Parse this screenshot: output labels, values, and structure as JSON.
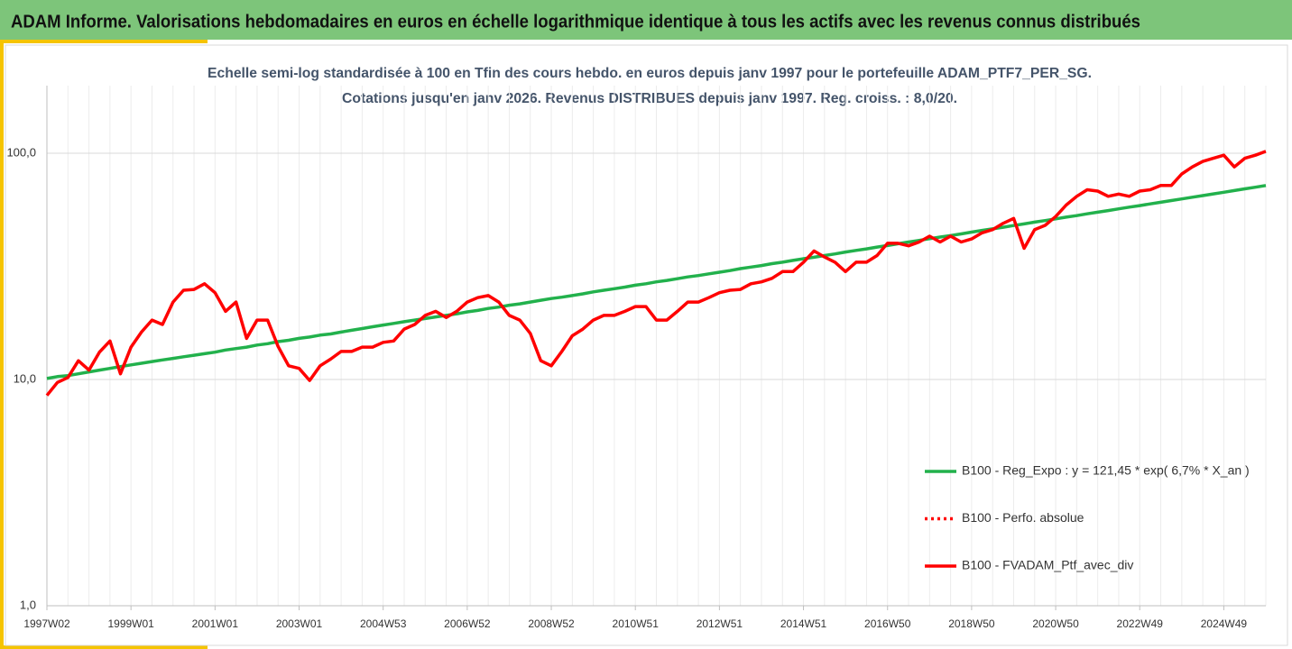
{
  "header": {
    "title": "ADAM Informe. Valorisations hebdomadaires en euros en échelle logarithmique identique à tous les actifs avec les revenus connus distribués"
  },
  "chart_data": {
    "type": "line",
    "title": "Echelle semi-log standardisée  à 100 en Tfin des cours hebdo.  en euros depuis janv 1997 pour le portefeuille ADAM_PTF7_PER_SG.",
    "subtitle": "Cotations jusqu'en janv 2026. Revenus DISTRIBUES depuis janv 1997. Reg. croiss. : 8,0/20.",
    "categories": [
      "1997W02",
      null,
      null,
      null,
      null,
      null,
      null,
      null,
      "1999W01",
      null,
      null,
      null,
      null,
      null,
      null,
      null,
      "2001W01",
      null,
      null,
      null,
      null,
      null,
      null,
      null,
      "2003W01",
      null,
      null,
      null,
      null,
      null,
      null,
      null,
      "2004W53",
      null,
      null,
      null,
      null,
      null,
      null,
      null,
      "2006W52",
      null,
      null,
      null,
      null,
      null,
      null,
      null,
      "2008W52",
      null,
      null,
      null,
      null,
      null,
      null,
      null,
      "2010W51",
      null,
      null,
      null,
      null,
      null,
      null,
      null,
      "2012W51",
      null,
      null,
      null,
      null,
      null,
      null,
      null,
      "2014W51",
      null,
      null,
      null,
      null,
      null,
      null,
      null,
      "2016W50",
      null,
      null,
      null,
      null,
      null,
      null,
      null,
      "2018W50",
      null,
      null,
      null,
      null,
      null,
      null,
      null,
      "2020W50",
      null,
      null,
      null,
      null,
      null,
      null,
      null,
      "2022W49",
      null,
      null,
      null,
      null,
      null,
      null,
      null,
      "2024W49",
      null,
      null,
      null,
      null
    ],
    "series": [
      {
        "name": "B100 - Reg_Expo : y = 121,45 * exp( 6,7% *  X_an )",
        "color": "#22b14c",
        "style": "solid",
        "values": [
          10.1,
          10.3,
          10.4,
          10.6,
          10.8,
          11.0,
          11.2,
          11.4,
          11.6,
          11.8,
          12.0,
          12.2,
          12.4,
          12.6,
          12.8,
          13.0,
          13.2,
          13.5,
          13.7,
          13.9,
          14.2,
          14.4,
          14.7,
          14.9,
          15.2,
          15.4,
          15.7,
          15.9,
          16.2,
          16.5,
          16.8,
          17.1,
          17.4,
          17.7,
          18.0,
          18.3,
          18.6,
          18.9,
          19.2,
          19.5,
          19.9,
          20.2,
          20.6,
          20.9,
          21.3,
          21.6,
          22.0,
          22.4,
          22.8,
          23.1,
          23.5,
          23.9,
          24.4,
          24.8,
          25.2,
          25.6,
          26.1,
          26.5,
          27.0,
          27.4,
          27.9,
          28.4,
          28.8,
          29.3,
          29.8,
          30.3,
          30.9,
          31.4,
          31.9,
          32.5,
          33.0,
          33.6,
          34.2,
          34.7,
          35.3,
          35.9,
          36.6,
          37.2,
          37.8,
          38.5,
          39.1,
          39.8,
          40.5,
          41.2,
          41.9,
          42.6,
          43.3,
          44.0,
          44.8,
          45.6,
          46.3,
          47.1,
          47.9,
          48.7,
          49.6,
          50.4,
          51.3,
          52.2,
          53.0,
          54.0,
          54.9,
          55.8,
          56.8,
          57.8,
          58.7,
          59.7,
          60.7,
          61.8,
          62.8,
          63.9,
          65.0,
          66.1,
          67.2,
          68.4,
          69.6,
          70.8,
          72.0
        ]
      },
      {
        "name": "B100 - Perfo. absolue",
        "color": "#ff0000",
        "style": "dotted"
      },
      {
        "name": "B100 - FVADAM_Ptf_avec_div",
        "color": "#ff0000",
        "style": "solid",
        "values": [
          8.5,
          9.7,
          10.2,
          12.1,
          11,
          13.2,
          14.8,
          10.6,
          13.9,
          16.2,
          18.3,
          17.5,
          22,
          24.8,
          25,
          26.5,
          24.2,
          20,
          22,
          15.2,
          18.3,
          18.3,
          14,
          11.5,
          11.2,
          9.9,
          11.5,
          12.3,
          13.3,
          13.3,
          13.9,
          13.9,
          14.6,
          14.8,
          16.7,
          17.5,
          19.2,
          20,
          18.8,
          20,
          22,
          23,
          23.5,
          22,
          19.2,
          18.3,
          16,
          12.1,
          11.5,
          13.3,
          15.6,
          16.7,
          18.3,
          19.2,
          19.2,
          20,
          21,
          21,
          18.3,
          18.3,
          20,
          22,
          22,
          23,
          24.2,
          24.8,
          25,
          26.5,
          27,
          28,
          30,
          30,
          33,
          37,
          34.8,
          33,
          30,
          33,
          33,
          35.3,
          40,
          40,
          39,
          40.5,
          43,
          40.5,
          43,
          40.5,
          41.8,
          44.5,
          46,
          49,
          51.5,
          38,
          46,
          48,
          52.5,
          59,
          64.5,
          69,
          68,
          64.5,
          66,
          64.5,
          68,
          69,
          72,
          72,
          81,
          87,
          92,
          95,
          98,
          87,
          95,
          98,
          102
        ]
      }
    ],
    "ylim": [
      1,
      199
    ],
    "yticks": [
      {
        "value": 1,
        "label": "1,0"
      },
      {
        "value": 10,
        "label": "10,0"
      },
      {
        "value": 100,
        "label": "100,0"
      }
    ],
    "log_scale": true,
    "grid": true,
    "legend": "right"
  }
}
